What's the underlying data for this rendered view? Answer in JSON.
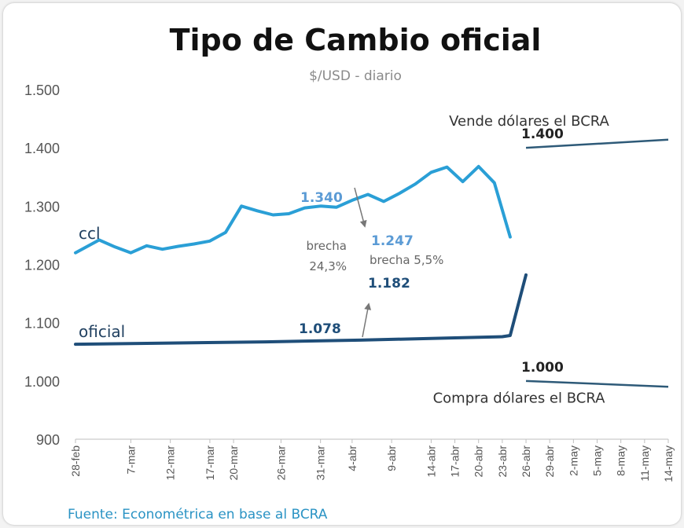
{
  "chart_data": {
    "type": "line",
    "title": "Tipo de Cambio oficial",
    "subtitle": "$/USD - diario",
    "source": "Fuente: Econométrica en base al BCRA",
    "ylim": [
      900,
      1500
    ],
    "yticks": [
      "1.500",
      "1.400",
      "1.300",
      "1.200",
      "1.100",
      "1.000",
      "900"
    ],
    "ytick_values": [
      1500,
      1400,
      1300,
      1200,
      1100,
      1000,
      900
    ],
    "xrange": [
      "2025-02-28",
      "2025-05-14"
    ],
    "xticks": [
      {
        "label": "28-feb",
        "date": "2025-02-28"
      },
      {
        "label": "7-mar",
        "date": "2025-03-07"
      },
      {
        "label": "12-mar",
        "date": "2025-03-12"
      },
      {
        "label": "17-mar",
        "date": "2025-03-17"
      },
      {
        "label": "20-mar",
        "date": "2025-03-20"
      },
      {
        "label": "26-mar",
        "date": "2025-03-26"
      },
      {
        "label": "31-mar",
        "date": "2025-03-31"
      },
      {
        "label": "4-abr",
        "date": "2025-04-04"
      },
      {
        "label": "9-abr",
        "date": "2025-04-09"
      },
      {
        "label": "14-abr",
        "date": "2025-04-14"
      },
      {
        "label": "17-abr",
        "date": "2025-04-17"
      },
      {
        "label": "20-abr",
        "date": "2025-04-20"
      },
      {
        "label": "23-abr",
        "date": "2025-04-23"
      },
      {
        "label": "26-abr",
        "date": "2025-04-26"
      },
      {
        "label": "29-abr",
        "date": "2025-04-29"
      },
      {
        "label": "2-may",
        "date": "2025-05-02"
      },
      {
        "label": "5-may",
        "date": "2025-05-05"
      },
      {
        "label": "8-may",
        "date": "2025-05-08"
      },
      {
        "label": "11-may",
        "date": "2025-05-11"
      },
      {
        "label": "14-may",
        "date": "2025-05-14"
      }
    ],
    "series": [
      {
        "name": "ccl",
        "color": "#2a9fd6",
        "points": [
          {
            "x": "2025-02-28",
            "y": 1220
          },
          {
            "x": "2025-03-03",
            "y": 1242
          },
          {
            "x": "2025-03-05",
            "y": 1230
          },
          {
            "x": "2025-03-07",
            "y": 1220
          },
          {
            "x": "2025-03-09",
            "y": 1232
          },
          {
            "x": "2025-03-11",
            "y": 1226
          },
          {
            "x": "2025-03-13",
            "y": 1231
          },
          {
            "x": "2025-03-15",
            "y": 1235
          },
          {
            "x": "2025-03-17",
            "y": 1240
          },
          {
            "x": "2025-03-19",
            "y": 1255
          },
          {
            "x": "2025-03-21",
            "y": 1300
          },
          {
            "x": "2025-03-23",
            "y": 1292
          },
          {
            "x": "2025-03-25",
            "y": 1285
          },
          {
            "x": "2025-03-27",
            "y": 1287
          },
          {
            "x": "2025-03-29",
            "y": 1297
          },
          {
            "x": "2025-03-31",
            "y": 1300
          },
          {
            "x": "2025-04-02",
            "y": 1298
          },
          {
            "x": "2025-04-04",
            "y": 1310
          },
          {
            "x": "2025-04-06",
            "y": 1320
          },
          {
            "x": "2025-04-08",
            "y": 1308
          },
          {
            "x": "2025-04-10",
            "y": 1322
          },
          {
            "x": "2025-04-12",
            "y": 1338
          },
          {
            "x": "2025-04-14",
            "y": 1358
          },
          {
            "x": "2025-04-16",
            "y": 1367
          },
          {
            "x": "2025-04-18",
            "y": 1342
          },
          {
            "x": "2025-04-20",
            "y": 1368
          },
          {
            "x": "2025-04-22",
            "y": 1340
          },
          {
            "x": "2025-04-24",
            "y": 1247
          }
        ]
      },
      {
        "name": "oficial",
        "color": "#1f4e79",
        "points": [
          {
            "x": "2025-02-28",
            "y": 1063
          },
          {
            "x": "2025-03-12",
            "y": 1065
          },
          {
            "x": "2025-03-24",
            "y": 1067
          },
          {
            "x": "2025-04-05",
            "y": 1070
          },
          {
            "x": "2025-04-17",
            "y": 1074
          },
          {
            "x": "2025-04-23",
            "y": 1076
          },
          {
            "x": "2025-04-24",
            "y": 1078
          },
          {
            "x": "2025-04-26",
            "y": 1182
          }
        ]
      }
    ],
    "reference_lines": [
      {
        "label": "Vende dólares el BCRA",
        "value_label": "1.400",
        "color": "#2e5a78",
        "start": {
          "x": "2025-04-26",
          "y": 1400
        },
        "end": {
          "x": "2025-05-14",
          "y": 1414
        }
      },
      {
        "label": "Compra dólares el BCRA",
        "value_label": "1.000",
        "color": "#2e5a78",
        "start": {
          "x": "2025-04-26",
          "y": 1000
        },
        "end": {
          "x": "2025-05-14",
          "y": 990
        }
      }
    ],
    "annotations": [
      {
        "text": "1.340",
        "x": "2025-04-22",
        "y": 1340,
        "color": "#5b9bd5"
      },
      {
        "text": "1.247",
        "x": "2025-04-24",
        "y": 1247,
        "color": "#5b9bd5"
      },
      {
        "text": "1.182",
        "x": "2025-04-26",
        "y": 1182,
        "color": "#1f4e79"
      },
      {
        "text": "1.078",
        "x": "2025-04-24",
        "y": 1078,
        "color": "#1f4e79"
      }
    ],
    "notes": [
      {
        "line1": "brecha",
        "line2": "24,3%"
      },
      {
        "line1": "brecha 5,5%"
      }
    ],
    "grid": false,
    "legend": "none"
  }
}
